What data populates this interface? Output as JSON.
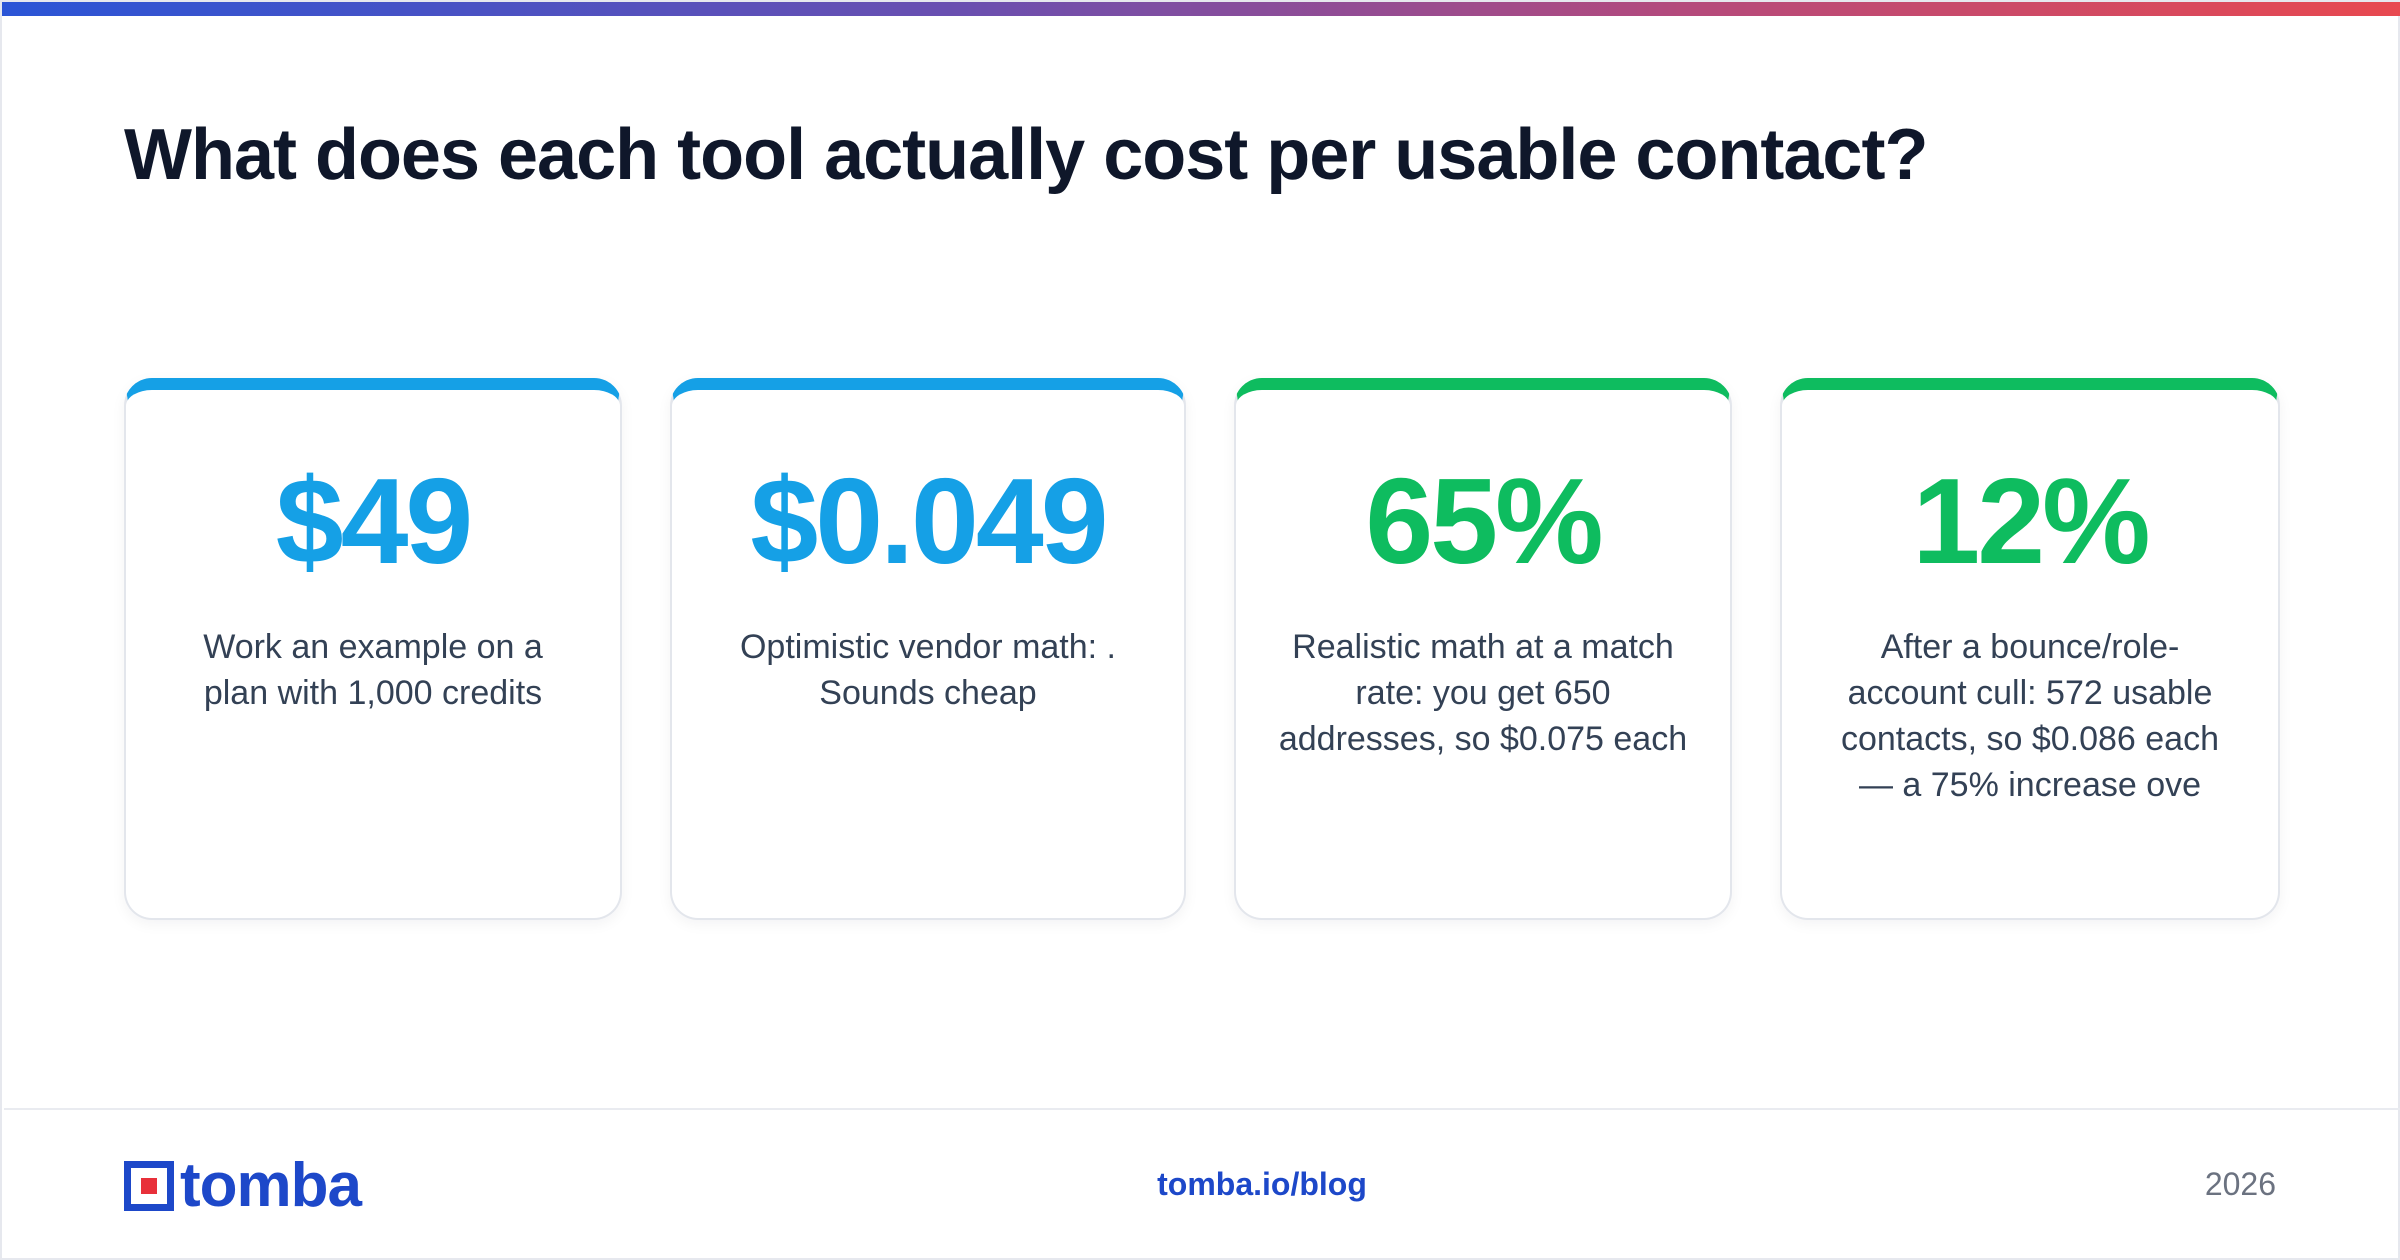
{
  "page": {
    "title": "What does each tool actually cost per usable contact?"
  },
  "colors": {
    "accent_blue": "#15a0e6",
    "accent_green": "#0ebc5f",
    "brand_blue": "#1d48c9",
    "brand_red": "#e8303a",
    "heading": "#0f172a"
  },
  "cards": [
    {
      "value": "$49",
      "description": "Work an example on a plan with 1,000 credits",
      "accent": "blue"
    },
    {
      "value": "$0.049",
      "description": "Optimistic vendor math: . Sounds cheap",
      "accent": "blue"
    },
    {
      "value": "65%",
      "description": "Realistic math at a match rate: you get 650 addresses, so $0.075 each",
      "accent": "green"
    },
    {
      "value": "12%",
      "description": "After a bounce/role-account cull: 572 usable contacts, so $0.086 each — a 75% increase ove",
      "accent": "green"
    }
  ],
  "footer": {
    "logo_text": "tomba",
    "logo_icon": "tomba-logo-icon",
    "link": "tomba.io/blog",
    "year": "2026"
  }
}
